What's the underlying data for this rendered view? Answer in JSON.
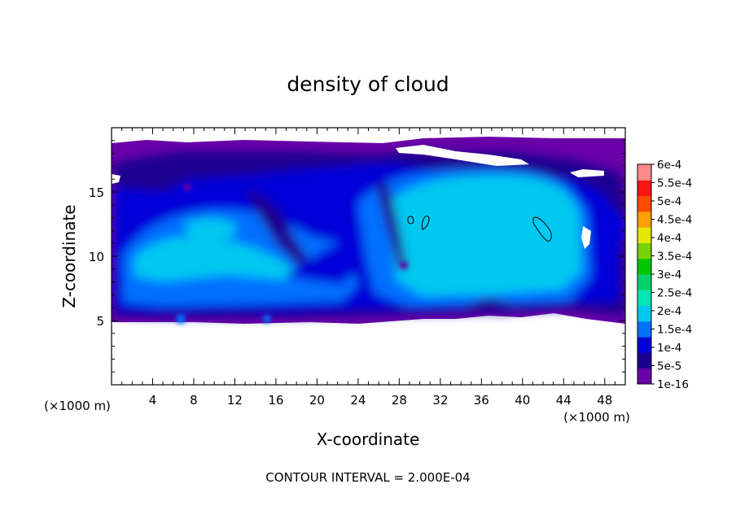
{
  "chart_data": {
    "type": "heatmap",
    "title": "density of cloud",
    "xlabel": "X-coordinate",
    "ylabel": "Z-coordinate",
    "x_unit": "(×1000 m)",
    "y_unit": "(×1000 m)",
    "xlim": [
      0,
      50
    ],
    "ylim": [
      0,
      20
    ],
    "x_ticks": [
      4,
      8,
      12,
      16,
      20,
      24,
      28,
      32,
      36,
      40,
      44,
      48
    ],
    "y_ticks": [
      5,
      10,
      15
    ],
    "footer": "CONTOUR INTERVAL = 2.000E-04",
    "colorbar": {
      "labels": [
        "1e-16",
        "5e-5",
        "1e-4",
        "1.5e-4",
        "2e-4",
        "2.5e-4",
        "3e-4",
        "3.5e-4",
        "4e-4",
        "4.5e-4",
        "5e-4",
        "5.5e-4",
        "6e-4"
      ],
      "colors": [
        "#6a00a8",
        "#1a0090",
        "#0000d8",
        "#0070ff",
        "#00c8f0",
        "#00e6b4",
        "#00d26e",
        "#00c800",
        "#78d200",
        "#e6e600",
        "#ffa000",
        "#ff4b00",
        "#ff1414",
        "#ff8c8c"
      ]
    }
  }
}
